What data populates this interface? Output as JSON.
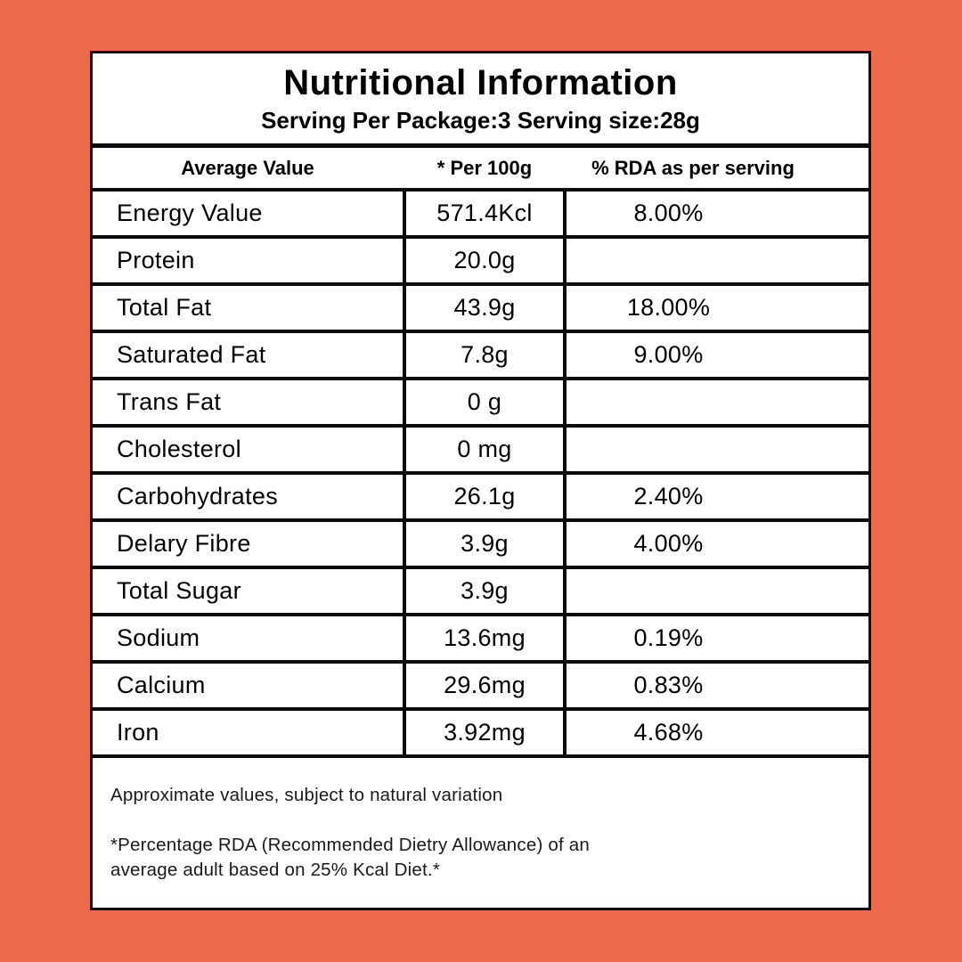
{
  "background_color": "#ED6A4D",
  "card": {
    "title": "Nutritional Information",
    "subtitle": "Serving Per Package:3 Serving size:28g"
  },
  "table": {
    "headers": [
      "Average Value",
      "* Per 100g",
      "% RDA as per serving"
    ],
    "rows": [
      {
        "label": "Energy Value",
        "per100g": "571.4Kcl",
        "rda": "8.00%"
      },
      {
        "label": "Protein",
        "per100g": "20.0g",
        "rda": ""
      },
      {
        "label": "Total Fat",
        "per100g": "43.9g",
        "rda": "18.00%"
      },
      {
        "label": "Saturated Fat",
        "per100g": "7.8g",
        "rda": "9.00%"
      },
      {
        "label": "Trans Fat",
        "per100g": "0 g",
        "rda": ""
      },
      {
        "label": "Cholesterol",
        "per100g": "0 mg",
        "rda": ""
      },
      {
        "label": "Carbohydrates",
        "per100g": "26.1g",
        "rda": "2.40%"
      },
      {
        "label": "Delary Fibre",
        "per100g": "3.9g",
        "rda": "4.00%"
      },
      {
        "label": "Total Sugar",
        "per100g": "3.9g",
        "rda": ""
      },
      {
        "label": "Sodium",
        "per100g": "13.6mg",
        "rda": "0.19%"
      },
      {
        "label": "Calcium",
        "per100g": "29.6mg",
        "rda": "0.83%"
      },
      {
        "label": "Iron",
        "per100g": "3.92mg",
        "rda": "4.68%"
      }
    ]
  },
  "footer": {
    "line1": "Approximate values, subject to natural variation",
    "note_lines": [
      "*Percentage RDA (Recommended Dietry Allowance) of an",
      "average adult based on 25% Kcal Diet.*"
    ]
  }
}
